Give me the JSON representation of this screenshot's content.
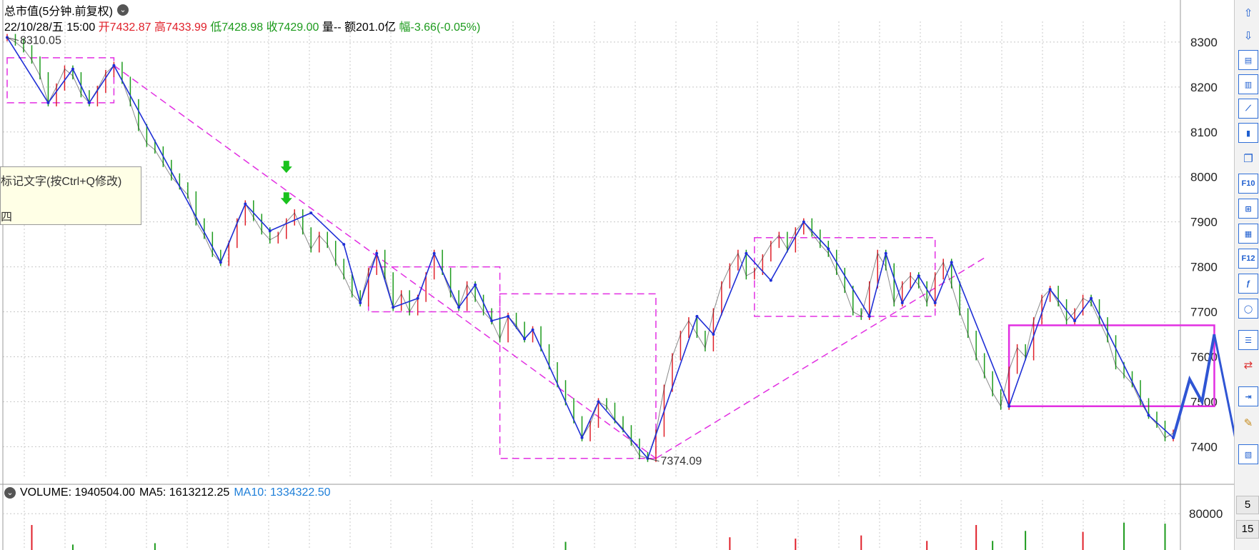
{
  "header": {
    "title": "总市值(5分钟.前复权)",
    "date": "22/10/28/五 15:00",
    "open_label": "开7432.87",
    "high_label": "高7433.99",
    "low_label": "低7428.98",
    "close_label": "收7429.00",
    "volume_label": "量--",
    "amount_label": "额201.0亿",
    "change_label": "幅-3.66(-0.05%)"
  },
  "note": {
    "line1": "标记文字(按Ctrl+Q修改)",
    "line2": "四"
  },
  "volume_panel": {
    "volume_label": "VOLUME: 1940504.00",
    "ma5_label": "MA5: 1613212.25",
    "ma10_label": "MA10: 1334322.50"
  },
  "toolbar": {
    "items": [
      "arrow-up-icon",
      "arrow-down-icon",
      "layout-icon",
      "bars-icon",
      "line-chart-icon",
      "candle-icon",
      "windows-icon",
      "f10-icon",
      "tree-icon",
      "calendar-icon",
      "f12-icon",
      "formula-icon",
      "circle-icon",
      "list-icon",
      "exchange-icon",
      "export-icon",
      "pencil-icon",
      "image-icon"
    ],
    "labels": {
      "f10": "F10",
      "f12": "F12"
    },
    "num1": "5",
    "num2": "15"
  },
  "colors": {
    "up": "#e0202a",
    "down": "#1d9b1d",
    "zigzag": "#1f2fd6",
    "pattern": "#e22fe2",
    "grid": "#c8c8c8",
    "ma10": "#1e7fd9"
  },
  "chart_data": [
    {
      "type": "line",
      "title": "总市值(5分钟.前复权)",
      "ylim": [
        7345,
        8330
      ],
      "y_ticks": [
        8300,
        8200,
        8100,
        8000,
        7900,
        7800,
        7700,
        7600,
        7500,
        7400
      ],
      "grid": true,
      "series": [
        {
          "kind": "price",
          "values": [
            8310.05,
            8300,
            8285,
            8260,
            8225,
            8165,
            8200,
            8240,
            8225,
            8185,
            8165,
            8195,
            8230,
            8248,
            8215,
            8165,
            8110,
            8075,
            8060,
            8030,
            8000,
            7980,
            7960,
            7900,
            7870,
            7830,
            7810,
            7850,
            7900,
            7940,
            7910,
            7880,
            7860,
            7870,
            7900,
            7920,
            7880,
            7840,
            7870,
            7850,
            7810,
            7780,
            7740,
            7720,
            7790,
            7830,
            7780,
            7710,
            7740,
            7700,
            7730,
            7780,
            7830,
            7790,
            7740,
            7710,
            7760,
            7730,
            7700,
            7680,
            7640,
            7690,
            7670,
            7640,
            7660,
            7620,
            7580,
            7540,
            7500,
            7460,
            7420,
            7450,
            7500,
            7490,
            7460,
            7440,
            7410,
            7380,
            7374.09,
            7430,
            7530,
            7600,
            7650,
            7680,
            7650,
            7620,
            7700,
            7760,
            7800,
            7830,
            7780,
            7790,
            7820,
            7850,
            7870,
            7840,
            7880,
            7900,
            7875,
            7850,
            7830,
            7790,
            7750,
            7700,
            7690,
            7760,
            7830,
            7800,
            7720,
            7760,
            7780,
            7760,
            7720,
            7780,
            7810,
            7760,
            7700,
            7650,
            7600,
            7560,
            7520,
            7490,
            7570,
            7620,
            7600,
            7680,
            7730,
            7750,
            7720,
            7680,
            7700,
            7730,
            7720,
            7680,
            7640,
            7580,
            7560,
            7540,
            7500,
            7470,
            7450,
            7420,
            7430
          ],
          "color": "#2a2a2a"
        }
      ],
      "zigzag": [
        {
          "i": 0,
          "v": 8310.05
        },
        {
          "i": 5,
          "v": 8165
        },
        {
          "i": 8,
          "v": 8240
        },
        {
          "i": 10,
          "v": 8165
        },
        {
          "i": 13,
          "v": 8248
        },
        {
          "i": 26,
          "v": 7810
        },
        {
          "i": 29,
          "v": 7940
        },
        {
          "i": 32,
          "v": 7880
        },
        {
          "i": 37,
          "v": 7920
        },
        {
          "i": 41,
          "v": 7850
        },
        {
          "i": 43,
          "v": 7720
        },
        {
          "i": 45,
          "v": 7830
        },
        {
          "i": 47,
          "v": 7710
        },
        {
          "i": 50,
          "v": 7730
        },
        {
          "i": 52,
          "v": 7830
        },
        {
          "i": 55,
          "v": 7710
        },
        {
          "i": 57,
          "v": 7760
        },
        {
          "i": 59,
          "v": 7680
        },
        {
          "i": 61,
          "v": 7690
        },
        {
          "i": 63,
          "v": 7640
        },
        {
          "i": 64,
          "v": 7660
        },
        {
          "i": 70,
          "v": 7420
        },
        {
          "i": 72,
          "v": 7500
        },
        {
          "i": 78,
          "v": 7374.09
        },
        {
          "i": 84,
          "v": 7690
        },
        {
          "i": 86,
          "v": 7650
        },
        {
          "i": 90,
          "v": 7830
        },
        {
          "i": 93,
          "v": 7770
        },
        {
          "i": 97,
          "v": 7900
        },
        {
          "i": 100,
          "v": 7840
        },
        {
          "i": 105,
          "v": 7690
        },
        {
          "i": 107,
          "v": 7830
        },
        {
          "i": 109,
          "v": 7720
        },
        {
          "i": 111,
          "v": 7780
        },
        {
          "i": 113,
          "v": 7720
        },
        {
          "i": 115,
          "v": 7810
        },
        {
          "i": 122,
          "v": 7490
        },
        {
          "i": 127,
          "v": 7750
        },
        {
          "i": 130,
          "v": 7680
        },
        {
          "i": 132,
          "v": 7730
        },
        {
          "i": 139,
          "v": 7470
        },
        {
          "i": 142,
          "v": 7420
        }
      ],
      "annotations": [
        {
          "text": "8310.05",
          "i": 0,
          "v": 8310.05
        },
        {
          "text": "7374.09",
          "i": 78,
          "v": 7374.09
        }
      ],
      "pattern_boxes": [
        {
          "i0": 0,
          "i1": 13,
          "v0": 8165,
          "v1": 8265
        },
        {
          "i0": 44,
          "i1": 60,
          "v0": 7700,
          "v1": 7800
        },
        {
          "i0": 60,
          "i1": 79,
          "v0": 7374,
          "v1": 7740
        },
        {
          "i0": 91,
          "i1": 113,
          "v0": 7690,
          "v1": 7865
        },
        {
          "i0": 122,
          "i1": 147,
          "v0": 7490,
          "v1": 7670
        }
      ],
      "trend_lines": [
        {
          "i0": 13,
          "v0": 8248,
          "i1": 79,
          "v1": 7374
        },
        {
          "i0": 79,
          "v0": 7374,
          "i1": 119,
          "v1": 7820
        }
      ],
      "signal_arrows": [
        {
          "i": 34,
          "v": 8020
        },
        {
          "i": 34,
          "v": 7950
        }
      ]
    },
    {
      "type": "bar",
      "title": "VOLUME",
      "volume_ticks": [
        80000
      ],
      "ylim": [
        0,
        110000
      ],
      "series": [
        {
          "name": "VOLUME: 1940504.00",
          "values": [],
          "bars": [
            {
              "i": 3,
              "v": 55000,
              "up": true
            },
            {
              "i": 8,
              "v": 12000,
              "up": false
            },
            {
              "i": 18,
              "v": 15000,
              "up": false
            },
            {
              "i": 68,
              "v": 18000,
              "up": false
            },
            {
              "i": 88,
              "v": 28000,
              "up": true
            },
            {
              "i": 96,
              "v": 25000,
              "up": true
            },
            {
              "i": 104,
              "v": 32000,
              "up": true
            },
            {
              "i": 112,
              "v": 20000,
              "up": true
            },
            {
              "i": 118,
              "v": 55000,
              "up": true
            },
            {
              "i": 120,
              "v": 20000,
              "up": false
            },
            {
              "i": 124,
              "v": 42000,
              "up": false
            },
            {
              "i": 131,
              "v": 40000,
              "up": true
            },
            {
              "i": 136,
              "v": 60000,
              "up": false
            },
            {
              "i": 141,
              "v": 58000,
              "up": false
            }
          ]
        }
      ]
    }
  ]
}
